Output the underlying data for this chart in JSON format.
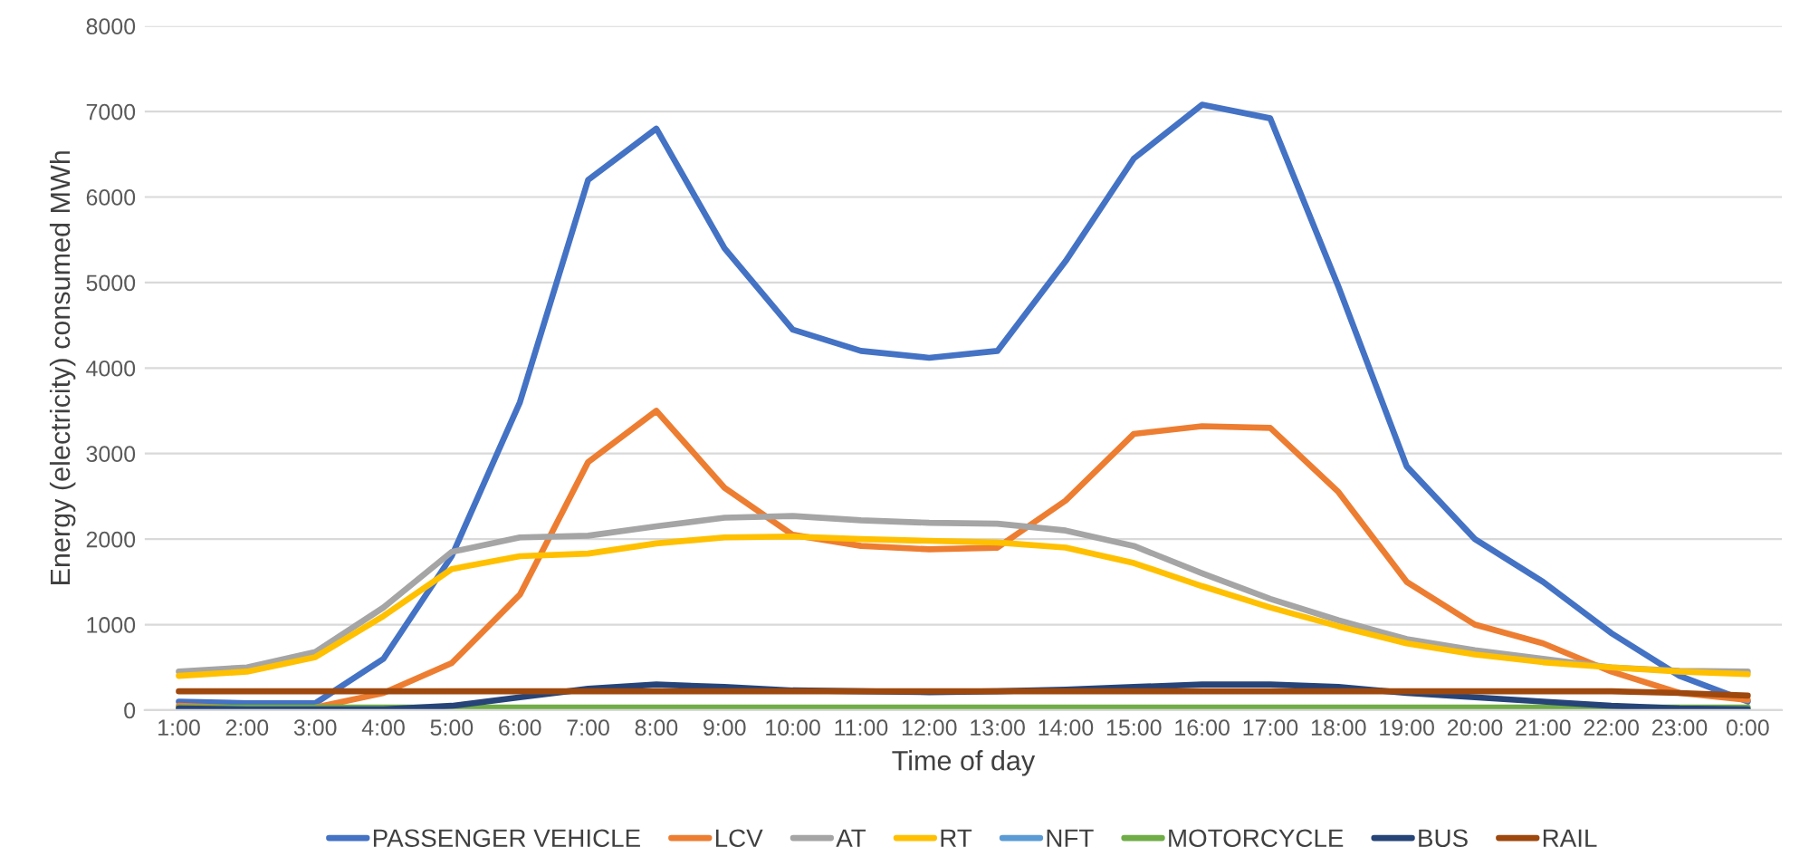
{
  "chart_data": {
    "type": "line",
    "xlabel": "Time of day",
    "ylabel": "Energy (electricity) consumed MWh",
    "categories": [
      "1:00",
      "2:00",
      "3:00",
      "4:00",
      "5:00",
      "6:00",
      "7:00",
      "8:00",
      "9:00",
      "10:00",
      "11:00",
      "12:00",
      "13:00",
      "14:00",
      "15:00",
      "16:00",
      "17:00",
      "18:00",
      "19:00",
      "20:00",
      "21:00",
      "22:00",
      "23:00",
      "0:00"
    ],
    "series": [
      {
        "name": "PASSENGER VEHICLE",
        "color": "#4472c4",
        "values": [
          100,
          80,
          80,
          600,
          1800,
          3600,
          6200,
          6800,
          5400,
          4450,
          4200,
          4120,
          4200,
          5250,
          6450,
          7080,
          6920,
          4950,
          2850,
          2000,
          1500,
          900,
          400,
          100
        ]
      },
      {
        "name": "LCV",
        "color": "#ed7d31",
        "values": [
          50,
          20,
          30,
          200,
          550,
          1350,
          2900,
          3500,
          2600,
          2050,
          1920,
          1880,
          1900,
          2450,
          3230,
          3320,
          3300,
          2550,
          1500,
          1000,
          780,
          450,
          200,
          120
        ]
      },
      {
        "name": "AT",
        "color": "#a5a5a5",
        "values": [
          450,
          500,
          680,
          1200,
          1850,
          2020,
          2040,
          2150,
          2250,
          2270,
          2220,
          2190,
          2180,
          2100,
          1920,
          1600,
          1300,
          1050,
          830,
          700,
          600,
          500,
          460,
          450
        ]
      },
      {
        "name": "RT",
        "color": "#ffc000",
        "values": [
          400,
          450,
          620,
          1100,
          1650,
          1800,
          1830,
          1950,
          2020,
          2030,
          2000,
          1980,
          1960,
          1900,
          1720,
          1450,
          1200,
          980,
          780,
          650,
          560,
          500,
          450,
          420
        ]
      },
      {
        "name": "NFT",
        "color": "#5b9bd5",
        "values": [
          null,
          null,
          null,
          null,
          null,
          null,
          null,
          null,
          null,
          null,
          null,
          null,
          null,
          null,
          null,
          null,
          null,
          null,
          null,
          null,
          null,
          null,
          null,
          null
        ]
      },
      {
        "name": "MOTORCYCLE",
        "color": "#70ad47",
        "values": [
          30,
          30,
          30,
          30,
          30,
          30,
          30,
          30,
          30,
          30,
          30,
          30,
          30,
          30,
          30,
          30,
          30,
          30,
          30,
          30,
          30,
          30,
          30,
          30
        ]
      },
      {
        "name": "BUS",
        "color": "#264478",
        "values": [
          20,
          10,
          10,
          10,
          50,
          150,
          250,
          300,
          270,
          230,
          220,
          210,
          220,
          240,
          270,
          300,
          300,
          270,
          200,
          150,
          100,
          50,
          20,
          10
        ]
      },
      {
        "name": "RAIL",
        "color": "#9e480e",
        "values": [
          220,
          220,
          220,
          220,
          220,
          220,
          220,
          220,
          220,
          220,
          220,
          220,
          220,
          220,
          220,
          220,
          220,
          220,
          220,
          220,
          220,
          220,
          200,
          170
        ]
      }
    ],
    "ylim": [
      0,
      8000
    ],
    "yticks": [
      0,
      1000,
      2000,
      3000,
      4000,
      5000,
      6000,
      7000,
      8000
    ],
    "grid": "y",
    "legend": "bottom",
    "marker": "none",
    "line_style": "solid"
  }
}
